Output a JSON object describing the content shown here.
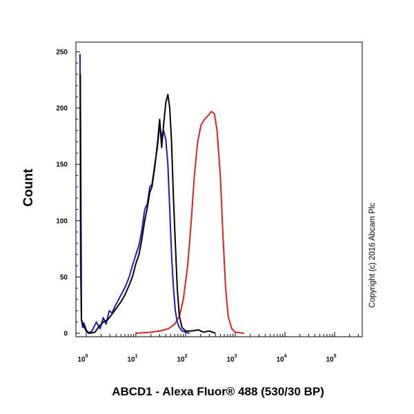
{
  "chart_data": {
    "type": "line",
    "xlabel": "ABCD1 - Alexa Fluor® 488 (530/30 BP)",
    "ylabel": "Count",
    "xscale": "log",
    "xlim": [
      0.7,
      180000
    ],
    "ylim": [
      0,
      255
    ],
    "y_ticks": [
      0,
      50,
      100,
      150,
      200,
      250
    ],
    "x_tick_labels": [
      {
        "value": 1,
        "base": "10",
        "exp": "0"
      },
      {
        "value": 10,
        "base": "10",
        "exp": "1"
      },
      {
        "value": 100,
        "base": "10",
        "exp": "2"
      },
      {
        "value": 1000,
        "base": "10",
        "exp": "3"
      },
      {
        "value": 10000,
        "base": "10",
        "exp": "4"
      },
      {
        "value": 100000,
        "base": "10",
        "exp": "5"
      }
    ],
    "grid": false,
    "series": [
      {
        "color": "#1a1acc",
        "points": [
          [
            0.75,
            248
          ],
          [
            0.77,
            60
          ],
          [
            0.8,
            12
          ],
          [
            0.85,
            5
          ],
          [
            0.9,
            9
          ],
          [
            1.0,
            3
          ],
          [
            1.1,
            0
          ],
          [
            1.3,
            2
          ],
          [
            1.6,
            10
          ],
          [
            1.9,
            4
          ],
          [
            2.2,
            14
          ],
          [
            2.5,
            8
          ],
          [
            2.9,
            20
          ],
          [
            3.3,
            18
          ],
          [
            3.8,
            24
          ],
          [
            4.5,
            30
          ],
          [
            5.3,
            36
          ],
          [
            6.2,
            42
          ],
          [
            7.3,
            50
          ],
          [
            8.5,
            60
          ],
          [
            10,
            70
          ],
          [
            11.5,
            78
          ],
          [
            13,
            90
          ],
          [
            15,
            110
          ],
          [
            17,
            115
          ],
          [
            19,
            130
          ],
          [
            21,
            132
          ],
          [
            24,
            150
          ],
          [
            27,
            165
          ],
          [
            30,
            185
          ],
          [
            33,
            175
          ],
          [
            36,
            180
          ],
          [
            40,
            172
          ],
          [
            44,
            150
          ],
          [
            48,
            110
          ],
          [
            52,
            70
          ],
          [
            57,
            40
          ],
          [
            62,
            20
          ],
          [
            68,
            10
          ],
          [
            75,
            5
          ],
          [
            85,
            2
          ],
          [
            100,
            1
          ],
          [
            120,
            0
          ]
        ]
      },
      {
        "color": "#000000",
        "points": [
          [
            0.76,
            230
          ],
          [
            0.8,
            12
          ],
          [
            0.9,
            6
          ],
          [
            1.0,
            2
          ],
          [
            1.2,
            0
          ],
          [
            1.5,
            1
          ],
          [
            1.8,
            6
          ],
          [
            2.2,
            10
          ],
          [
            2.7,
            12
          ],
          [
            3.3,
            17
          ],
          [
            4.0,
            22
          ],
          [
            5.0,
            28
          ],
          [
            6.0,
            34
          ],
          [
            7.2,
            42
          ],
          [
            8.5,
            50
          ],
          [
            10,
            62
          ],
          [
            11.5,
            70
          ],
          [
            13,
            82
          ],
          [
            15,
            100
          ],
          [
            17,
            112
          ],
          [
            19,
            125
          ],
          [
            21,
            130
          ],
          [
            24,
            148
          ],
          [
            27,
            168
          ],
          [
            30,
            190
          ],
          [
            33,
            165
          ],
          [
            36,
            185
          ],
          [
            40,
            205
          ],
          [
            44,
            212
          ],
          [
            48,
            200
          ],
          [
            52,
            170
          ],
          [
            57,
            120
          ],
          [
            62,
            80
          ],
          [
            68,
            40
          ],
          [
            75,
            15
          ],
          [
            85,
            5
          ],
          [
            100,
            2
          ],
          [
            130,
            2
          ],
          [
            180,
            3
          ],
          [
            230,
            1
          ],
          [
            300,
            2
          ],
          [
            400,
            0
          ]
        ]
      },
      {
        "color": "#e02020",
        "points": [
          [
            10,
            0
          ],
          [
            20,
            1
          ],
          [
            30,
            2
          ],
          [
            45,
            4
          ],
          [
            60,
            8
          ],
          [
            75,
            15
          ],
          [
            90,
            30
          ],
          [
            110,
            60
          ],
          [
            130,
            100
          ],
          [
            150,
            140
          ],
          [
            175,
            170
          ],
          [
            205,
            185
          ],
          [
            240,
            190
          ],
          [
            280,
            193
          ],
          [
            330,
            197
          ],
          [
            380,
            195
          ],
          [
            430,
            180
          ],
          [
            500,
            140
          ],
          [
            560,
            90
          ],
          [
            640,
            40
          ],
          [
            720,
            15
          ],
          [
            850,
            4
          ],
          [
            1000,
            1
          ],
          [
            1500,
            0
          ]
        ]
      }
    ]
  },
  "copyright": "Copyright (c) 2016 Abcam Plc"
}
